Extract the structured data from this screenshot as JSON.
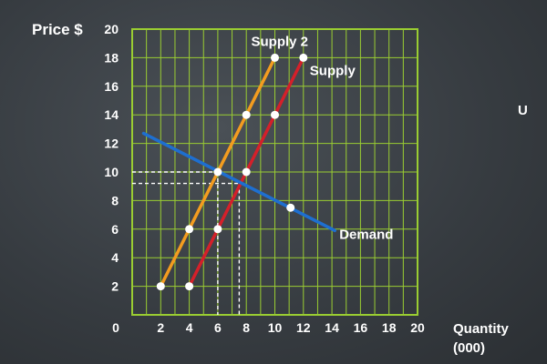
{
  "chart_data": {
    "type": "line",
    "title": "",
    "xlabel": "Quantity",
    "xlabel_sub": "(000)",
    "ylabel": "Price $",
    "xlim": [
      0,
      20
    ],
    "ylim": [
      0,
      20
    ],
    "x_ticks": [
      0,
      2,
      4,
      6,
      8,
      10,
      12,
      14,
      16,
      18,
      20
    ],
    "y_ticks": [
      2,
      4,
      6,
      8,
      10,
      12,
      14,
      16,
      18,
      20
    ],
    "grid": true,
    "series": [
      {
        "name": "Supply 2",
        "color": "#f39c1f",
        "points": [
          [
            2,
            2
          ],
          [
            4,
            6
          ],
          [
            6,
            10
          ],
          [
            8,
            14
          ],
          [
            10,
            18
          ]
        ],
        "markers": [
          [
            2,
            2
          ],
          [
            4,
            6
          ],
          [
            6,
            10
          ],
          [
            8,
            14
          ],
          [
            10,
            18
          ]
        ]
      },
      {
        "name": "Supply",
        "color": "#d4202a",
        "points": [
          [
            4,
            2
          ],
          [
            6,
            6
          ],
          [
            8,
            10
          ],
          [
            10,
            14
          ],
          [
            12,
            18
          ]
        ],
        "markers": [
          [
            4,
            2
          ],
          [
            6,
            6
          ],
          [
            8,
            10
          ],
          [
            10,
            14
          ],
          [
            12,
            18
          ]
        ]
      },
      {
        "name": "Demand",
        "color": "#1e6fd0",
        "points": [
          [
            0.8,
            12.7
          ],
          [
            14.2,
            5.9
          ]
        ],
        "markers": [
          [
            11.1,
            7.5
          ]
        ]
      }
    ],
    "guides": [
      {
        "x": 6,
        "y": 10
      },
      {
        "x": 7.5,
        "y": 9.2
      }
    ]
  },
  "side_text": "U"
}
